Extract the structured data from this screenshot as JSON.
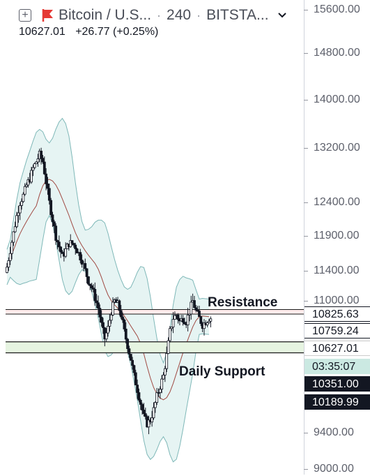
{
  "header": {
    "symbol": "Bitcoin / U.S...",
    "interval": "240",
    "exchange": "BITSTA...",
    "last": "10627.01",
    "change": "+26.77 (+0.25%)"
  },
  "annotations": {
    "resistance": "Resistance",
    "support": "Daily Support"
  },
  "axis": {
    "ticks": [
      "15600.00",
      "14800.00",
      "14000.00",
      "13200.00",
      "12400.00",
      "11900.00",
      "11400.00",
      "11000.00",
      "9400.00",
      "9000.00"
    ],
    "price_labels": [
      {
        "text": "10825.63",
        "bg": "#ffffff",
        "fg": "#131722",
        "border": "#131722"
      },
      {
        "text": "10759.24",
        "bg": "#ffffff",
        "fg": "#131722",
        "border": "#131722"
      },
      {
        "text": "10627.01",
        "bg": "#ffffff",
        "fg": "#131722",
        "border": "#cccccc"
      },
      {
        "text": "03:35:07",
        "bg": "#cbe9e2",
        "fg": "#131722",
        "border": "#cbe9e2"
      },
      {
        "text": "10351.00",
        "bg": "#131722",
        "fg": "#ffffff",
        "border": "#131722"
      },
      {
        "text": "10189.99",
        "bg": "#131722",
        "fg": "#ffffff",
        "border": "#131722"
      }
    ]
  },
  "colors": {
    "candle": "#131722",
    "bollinger_fill": "#e6f4f3",
    "bollinger_band": "#7fb8b8",
    "basis": "#a04a43",
    "resistance_line": "#1a1a1a",
    "resistance_fill": "#ffecec",
    "support_fill": "#e6f4e1"
  },
  "chart_data": {
    "type": "line",
    "series": [
      {
        "values": [
          11450,
          11700,
          11950,
          12200,
          12400,
          12500,
          12650,
          12750,
          12900,
          13000,
          13100,
          13000,
          12700,
          12400,
          12150,
          11900,
          11750,
          11600,
          11700,
          11800,
          11800,
          11750,
          11650,
          11550,
          11400,
          11250,
          11150,
          11000,
          10850,
          10600,
          10400,
          10550,
          10800,
          10950,
          10900,
          10750,
          10500,
          10300,
          10100,
          9850,
          9650,
          9450,
          9250,
          9150,
          9200,
          9350,
          9550,
          9700,
          9850,
          10150,
          10500,
          10700,
          10750,
          10650,
          10700,
          10650,
          10800,
          10950,
          10800,
          10700,
          10600,
          10650,
          10700
        ]
      }
    ]
  }
}
